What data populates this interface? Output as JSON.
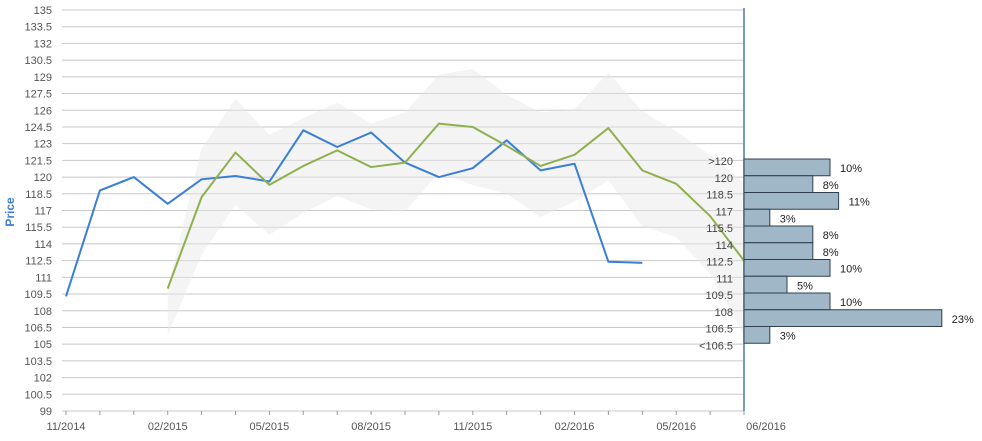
{
  "chart_data": {
    "type": "line",
    "ylabel": "Price",
    "ylim": [
      99,
      135
    ],
    "yticks": [
      "135",
      "133.5",
      "132",
      "130.5",
      "129",
      "127.5",
      "126",
      "124.5",
      "123",
      "121.5",
      "120",
      "118.5",
      "117",
      "115.5",
      "114",
      "112.5",
      "111",
      "109.5",
      "108",
      "106.5",
      "105",
      "103.5",
      "102",
      "100.5",
      "99"
    ],
    "xticks": [
      "11/2014",
      "02/2015",
      "05/2015",
      "08/2015",
      "11/2015",
      "02/2016",
      "05/2016",
      "06/2016"
    ],
    "grid": true,
    "colors": {
      "blue": "#3a7fd5",
      "green": "#8fb04e",
      "band": "#e6e6e6",
      "bar": "#9fb7c6",
      "barEdge": "#2f3f4f",
      "axis": "#4b79a9",
      "grid": "#c8c8c8"
    },
    "series": [
      {
        "color": "#3a7fd5",
        "points": [
          [
            "2014-11",
            109.3
          ],
          [
            "2014-12",
            118.8
          ],
          [
            "2015-01",
            120.0
          ],
          [
            "2015-02",
            117.6
          ],
          [
            "2015-03",
            119.8
          ],
          [
            "2015-04",
            120.1
          ],
          [
            "2015-05",
            119.6
          ],
          [
            "2015-06",
            124.2
          ],
          [
            "2015-07",
            122.7
          ],
          [
            "2015-08",
            124.0
          ],
          [
            "2015-09",
            121.3
          ],
          [
            "2015-10",
            120.0
          ],
          [
            "2015-11",
            120.8
          ],
          [
            "2015-12",
            123.3
          ],
          [
            "2016-01",
            120.6
          ],
          [
            "2016-02",
            121.2
          ],
          [
            "2016-03",
            112.4
          ],
          [
            "2016-04",
            112.3
          ]
        ]
      },
      {
        "color": "#8fb04e",
        "points": [
          [
            "2015-02",
            110.0
          ],
          [
            "2015-03",
            118.2
          ],
          [
            "2015-04",
            122.2
          ],
          [
            "2015-05",
            119.3
          ],
          [
            "2015-06",
            121.0
          ],
          [
            "2015-07",
            122.4
          ],
          [
            "2015-08",
            120.9
          ],
          [
            "2015-09",
            121.3
          ],
          [
            "2015-10",
            124.8
          ],
          [
            "2015-11",
            124.5
          ],
          [
            "2015-12",
            122.8
          ],
          [
            "2016-01",
            121.0
          ],
          [
            "2016-02",
            122.0
          ],
          [
            "2016-03",
            124.4
          ],
          [
            "2016-04",
            120.6
          ],
          [
            "2016-05",
            119.4
          ],
          [
            "2016-06",
            116.5
          ],
          [
            "2016-07",
            112.5
          ]
        ]
      }
    ],
    "band": {
      "color": "#e6e6e6",
      "upper": [
        [
          "2015-02",
          110.0
        ],
        [
          "2015-03",
          122.6
        ],
        [
          "2015-04",
          127.0
        ],
        [
          "2015-05",
          123.8
        ],
        [
          "2015-06",
          125.3
        ],
        [
          "2015-07",
          126.7
        ],
        [
          "2015-08",
          124.8
        ],
        [
          "2015-09",
          125.8
        ],
        [
          "2015-10",
          129.2
        ],
        [
          "2015-11",
          129.7
        ],
        [
          "2015-12",
          127.4
        ],
        [
          "2016-01",
          125.8
        ],
        [
          "2016-02",
          126.1
        ],
        [
          "2016-03",
          129.4
        ],
        [
          "2016-04",
          125.9
        ],
        [
          "2016-05",
          124.1
        ],
        [
          "2016-06",
          122.0
        ],
        [
          "2016-07",
          119.5
        ]
      ],
      "lower": [
        [
          "2015-02",
          105.8
        ],
        [
          "2015-03",
          113.0
        ],
        [
          "2015-04",
          117.5
        ],
        [
          "2015-05",
          114.8
        ],
        [
          "2015-06",
          116.8
        ],
        [
          "2015-07",
          118.3
        ],
        [
          "2015-08",
          117.1
        ],
        [
          "2015-09",
          116.9
        ],
        [
          "2015-10",
          120.4
        ],
        [
          "2015-11",
          119.3
        ],
        [
          "2015-12",
          118.5
        ],
        [
          "2016-01",
          116.4
        ],
        [
          "2016-02",
          117.8
        ],
        [
          "2016-03",
          119.7
        ],
        [
          "2016-04",
          115.6
        ],
        [
          "2016-05",
          114.6
        ],
        [
          "2016-06",
          111.3
        ],
        [
          "2016-07",
          105.8
        ]
      ]
    },
    "distribution": {
      "type": "bar",
      "categories": [
        ">120",
        "120",
        "118.5",
        "117",
        "115.5",
        "114",
        "112.5",
        "111",
        "109.5",
        "108",
        "106.5",
        "<106.5"
      ],
      "values": [
        10,
        8,
        11,
        3,
        8,
        8,
        10,
        5,
        10,
        23,
        3,
        null
      ],
      "labels": [
        "10%",
        "8%",
        "11%",
        "3%",
        "8%",
        "8%",
        "10%",
        "5%",
        "10%",
        "23%",
        "3%",
        ""
      ]
    }
  }
}
